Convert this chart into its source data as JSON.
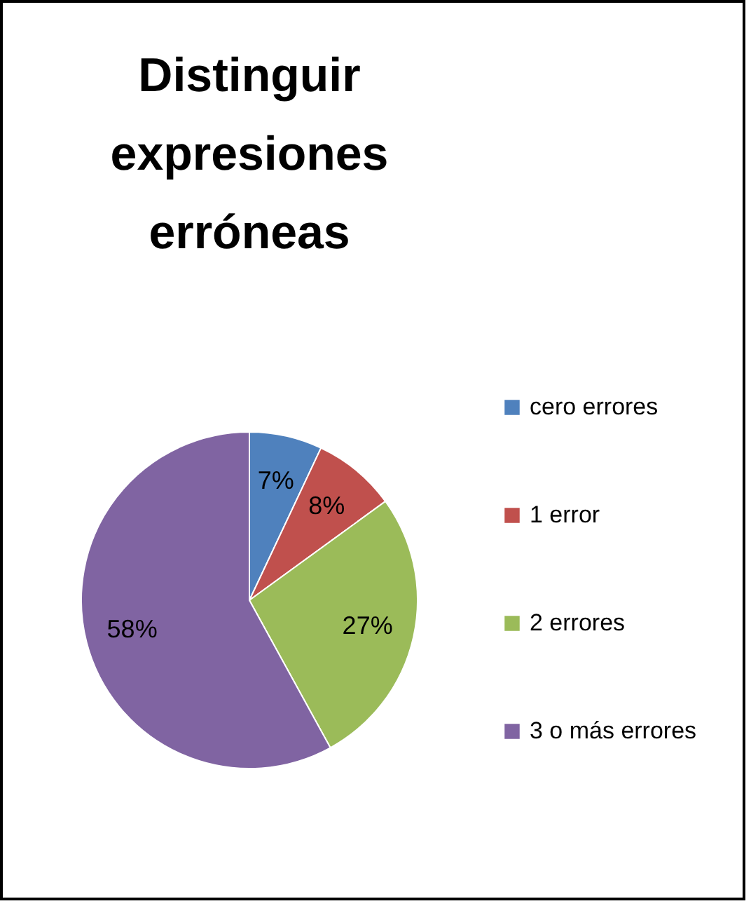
{
  "chart_data": {
    "type": "pie",
    "title": "Distinguir expresiones erróneas",
    "categories": [
      "cero errores",
      "1 error",
      "2 errores",
      "3 o más errores"
    ],
    "values": [
      7,
      8,
      27,
      58
    ],
    "value_labels": [
      "7%",
      "8%",
      "27%",
      "58%"
    ],
    "colors": [
      "#4f81bd",
      "#c0504d",
      "#9bbb59",
      "#8064a2"
    ],
    "legend": "right"
  }
}
